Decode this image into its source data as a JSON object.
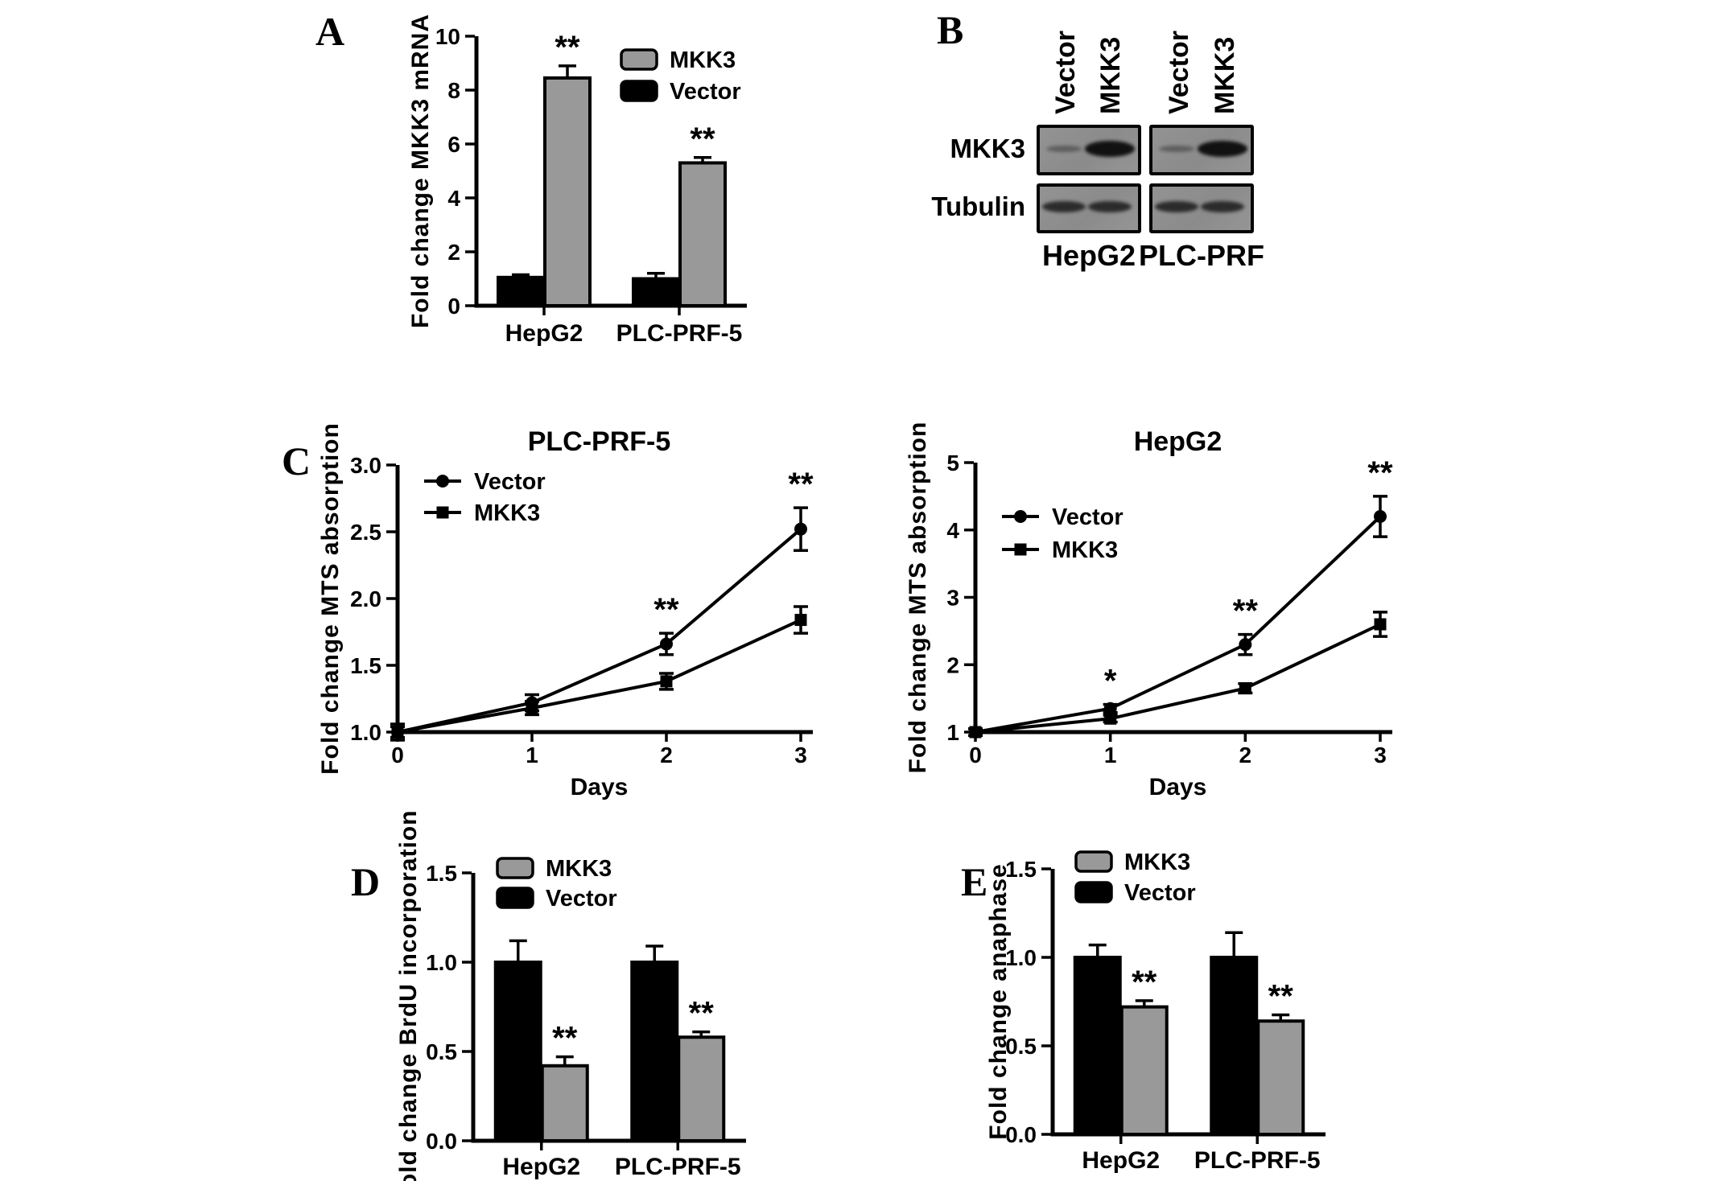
{
  "panel_letters": {
    "a": "A",
    "b": "B",
    "c": "C",
    "d": "D",
    "e": "E"
  },
  "colors": {
    "mkk3_fill": "#999999",
    "vector_fill": "#000000",
    "axis": "#000000",
    "blot_background": "#8f8f8f",
    "page_background": "#ffffff"
  },
  "chart_data": [
    {
      "id": "A",
      "type": "bar",
      "title": "",
      "ylabel": "Fold change MKK3 mRNA",
      "categories": [
        "HepG2",
        "PLC-PRF-5"
      ],
      "ylim": [
        0,
        10
      ],
      "yticks": [
        0,
        2,
        4,
        6,
        8,
        10
      ],
      "ytick_labels": [
        "0",
        "2",
        "4",
        "6",
        "8",
        "10"
      ],
      "grid": false,
      "series": [
        {
          "name": "Vector",
          "color": "#000000",
          "values": [
            1.05,
            1.0
          ],
          "errors": [
            0.1,
            0.2
          ]
        },
        {
          "name": "MKK3",
          "color": "#999999",
          "values": [
            8.45,
            5.3
          ],
          "errors": [
            0.45,
            0.2
          ],
          "sig": [
            "**",
            "**"
          ]
        }
      ],
      "legend": {
        "order": [
          "MKK3",
          "Vector"
        ],
        "position": "top-right"
      }
    },
    {
      "id": "C-left",
      "type": "line",
      "title": "PLC-PRF-5",
      "xlabel": "Days",
      "ylabel": "Fold change MTS absorption",
      "x": [
        0,
        1,
        2,
        3
      ],
      "xtick_labels": [
        "0",
        "1",
        "2",
        "3"
      ],
      "ylim": [
        1.0,
        3.0
      ],
      "yticks": [
        1.0,
        1.5,
        2.0,
        2.5,
        3.0
      ],
      "ytick_labels": [
        "1.0",
        "1.5",
        "2.0",
        "2.5",
        "3.0"
      ],
      "grid": false,
      "series": [
        {
          "name": "Vector",
          "marker": "circle",
          "values": [
            1.0,
            1.22,
            1.66,
            2.52
          ],
          "errors": [
            0.04,
            0.06,
            0.08,
            0.16
          ]
        },
        {
          "name": "MKK3",
          "marker": "square",
          "values": [
            1.0,
            1.18,
            1.38,
            1.84
          ],
          "errors": [
            0.06,
            0.05,
            0.06,
            0.1
          ]
        }
      ],
      "significance": [
        {
          "day": 2,
          "label": "**"
        },
        {
          "day": 3,
          "label": "**"
        }
      ],
      "legend": {
        "order": [
          "Vector",
          "MKK3"
        ],
        "position": "top-left"
      }
    },
    {
      "id": "C-right",
      "type": "line",
      "title": "HepG2",
      "xlabel": "Days",
      "ylabel": "Fold change MTS absorption",
      "x": [
        0,
        1,
        2,
        3
      ],
      "xtick_labels": [
        "0",
        "1",
        "2",
        "3"
      ],
      "ylim": [
        1,
        5
      ],
      "yticks": [
        1,
        2,
        3,
        4,
        5
      ],
      "ytick_labels": [
        "1",
        "2",
        "3",
        "4",
        "5"
      ],
      "grid": false,
      "series": [
        {
          "name": "Vector",
          "marker": "circle",
          "values": [
            1.0,
            1.35,
            2.3,
            4.2
          ],
          "errors": [
            0.05,
            0.06,
            0.15,
            0.3
          ]
        },
        {
          "name": "MKK3",
          "marker": "square",
          "values": [
            1.0,
            1.2,
            1.65,
            2.6
          ],
          "errors": [
            0.05,
            0.05,
            0.07,
            0.18
          ]
        }
      ],
      "significance": [
        {
          "day": 1,
          "label": "*"
        },
        {
          "day": 2,
          "label": "**"
        },
        {
          "day": 3,
          "label": "**"
        }
      ],
      "legend": {
        "order": [
          "Vector",
          "MKK3"
        ],
        "position": "top-left"
      }
    },
    {
      "id": "D",
      "type": "bar",
      "title": "",
      "ylabel": "Fold change BrdU incorporation",
      "categories": [
        "HepG2",
        "PLC-PRF-5"
      ],
      "ylim": [
        0,
        1.5
      ],
      "yticks": [
        0,
        0.5,
        1.0,
        1.5
      ],
      "ytick_labels": [
        "0.0",
        "0.5",
        "1.0",
        "1.5"
      ],
      "grid": false,
      "series": [
        {
          "name": "Vector",
          "color": "#000000",
          "values": [
            1.0,
            1.0
          ],
          "errors": [
            0.12,
            0.09
          ]
        },
        {
          "name": "MKK3",
          "color": "#999999",
          "values": [
            0.42,
            0.58
          ],
          "errors": [
            0.05,
            0.03
          ],
          "sig": [
            "**",
            "**"
          ]
        }
      ],
      "legend": {
        "order": [
          "MKK3",
          "Vector"
        ],
        "position": "top-left"
      }
    },
    {
      "id": "E",
      "type": "bar",
      "title": "",
      "ylabel": "Fold change anaphase",
      "categories": [
        "HepG2",
        "PLC-PRF-5"
      ],
      "ylim": [
        0,
        1.5
      ],
      "yticks": [
        0,
        0.5,
        1.0,
        1.5
      ],
      "ytick_labels": [
        "0.0",
        "0.5",
        "1.0",
        "1.5"
      ],
      "grid": false,
      "series": [
        {
          "name": "Vector",
          "color": "#000000",
          "values": [
            1.0,
            1.0
          ],
          "errors": [
            0.07,
            0.14
          ]
        },
        {
          "name": "MKK3",
          "color": "#999999",
          "values": [
            0.72,
            0.64
          ],
          "errors": [
            0.035,
            0.035
          ],
          "sig": [
            "**",
            "**"
          ]
        }
      ],
      "legend": {
        "order": [
          "MKK3",
          "Vector"
        ],
        "position": "top-left"
      }
    }
  ],
  "western_blot": {
    "lane_labels": [
      "Vector",
      "MKK3",
      "Vector",
      "MKK3"
    ],
    "rows": [
      {
        "label": "MKK3",
        "groups": [
          [
            "faint",
            "strong"
          ],
          [
            "faint",
            "strong"
          ]
        ]
      },
      {
        "label": "Tubulin",
        "groups": [
          [
            "normal",
            "normal"
          ],
          [
            "normal",
            "normal"
          ]
        ]
      }
    ],
    "group_labels": [
      "HepG2",
      "PLC-PRF"
    ]
  }
}
